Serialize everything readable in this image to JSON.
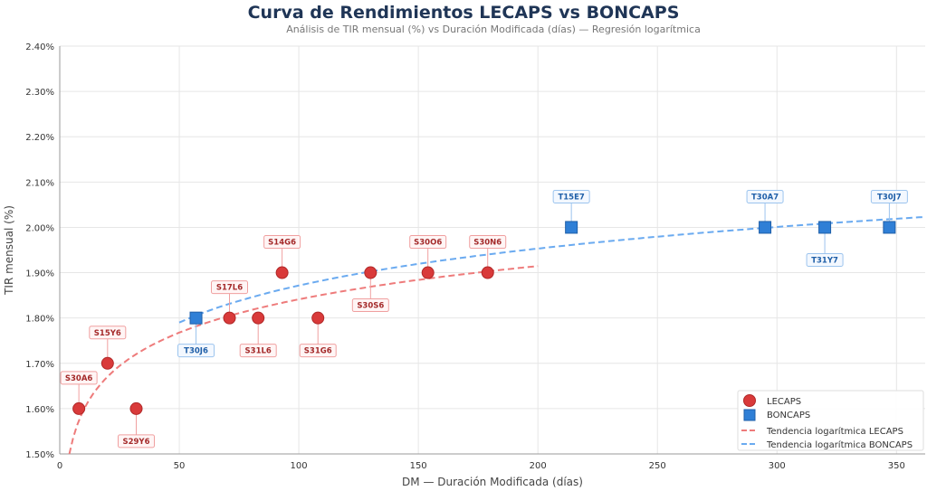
{
  "chart_data": {
    "type": "scatter",
    "title": "Curva de Rendimientos LECAPS vs BONCAPS",
    "subtitle": "Análisis de TIR mensual (%) vs Duración Modificada (días) — Regresión logarítmica",
    "xlabel": "DM — Duración Modificada (días)",
    "ylabel": "TIR mensual (%)",
    "xlim": [
      0,
      362
    ],
    "ylim": [
      1.5,
      2.4
    ],
    "x_ticks": [
      0,
      50,
      100,
      150,
      200,
      250,
      300,
      350
    ],
    "y_ticks": [
      1.5,
      1.6,
      1.7,
      1.8,
      1.9,
      2.0,
      2.1,
      2.2,
      2.3,
      2.4
    ],
    "y_tick_labels": [
      "1.50%",
      "1.60%",
      "1.70%",
      "1.80%",
      "1.90%",
      "2.00%",
      "2.10%",
      "2.20%",
      "2.30%",
      "2.40%"
    ],
    "grid": true,
    "legend_position": "bottom-right",
    "series": [
      {
        "name": "LECAPS",
        "marker": "circle",
        "color": "#d93a3a",
        "points": [
          {
            "label": "S30A6",
            "x": 8,
            "y": 1.6,
            "label_position": "above"
          },
          {
            "label": "S15Y6",
            "x": 20,
            "y": 1.7,
            "label_position": "above"
          },
          {
            "label": "S29Y6",
            "x": 32,
            "y": 1.6,
            "label_position": "below"
          },
          {
            "label": "S17L6",
            "x": 71,
            "y": 1.8,
            "label_position": "above"
          },
          {
            "label": "S31L6",
            "x": 83,
            "y": 1.8,
            "label_position": "below"
          },
          {
            "label": "S14G6",
            "x": 93,
            "y": 1.9,
            "label_position": "above"
          },
          {
            "label": "S31G6",
            "x": 108,
            "y": 1.8,
            "label_position": "below"
          },
          {
            "label": "S30S6",
            "x": 130,
            "y": 1.9,
            "label_position": "below"
          },
          {
            "label": "S30O6",
            "x": 154,
            "y": 1.9,
            "label_position": "above"
          },
          {
            "label": "S30N6",
            "x": 179,
            "y": 1.9,
            "label_position": "above"
          }
        ]
      },
      {
        "name": "BONCAPS",
        "marker": "square",
        "color": "#2f7fd6",
        "points": [
          {
            "label": "T30J6",
            "x": 57,
            "y": 1.8,
            "label_position": "below"
          },
          {
            "label": "T15E7",
            "x": 214,
            "y": 2.0,
            "label_position": "above"
          },
          {
            "label": "T30A7",
            "x": 295,
            "y": 2.0,
            "label_position": "above"
          },
          {
            "label": "T31Y7",
            "x": 320,
            "y": 2.0,
            "label_position": "below"
          },
          {
            "label": "T30J7",
            "x": 347,
            "y": 2.0,
            "label_position": "above"
          }
        ]
      }
    ],
    "trendlines": [
      {
        "name": "Tendencia logarítmica LECAPS",
        "color": "#ee7b7b",
        "a": 1.353,
        "b": 0.106,
        "x_range": [
          4,
          200
        ]
      },
      {
        "name": "Tendencia logarítmica BONCAPS",
        "color": "#6aaaf0",
        "a": 1.3296,
        "b": 0.1177,
        "x_range": [
          50,
          362
        ]
      }
    ]
  }
}
